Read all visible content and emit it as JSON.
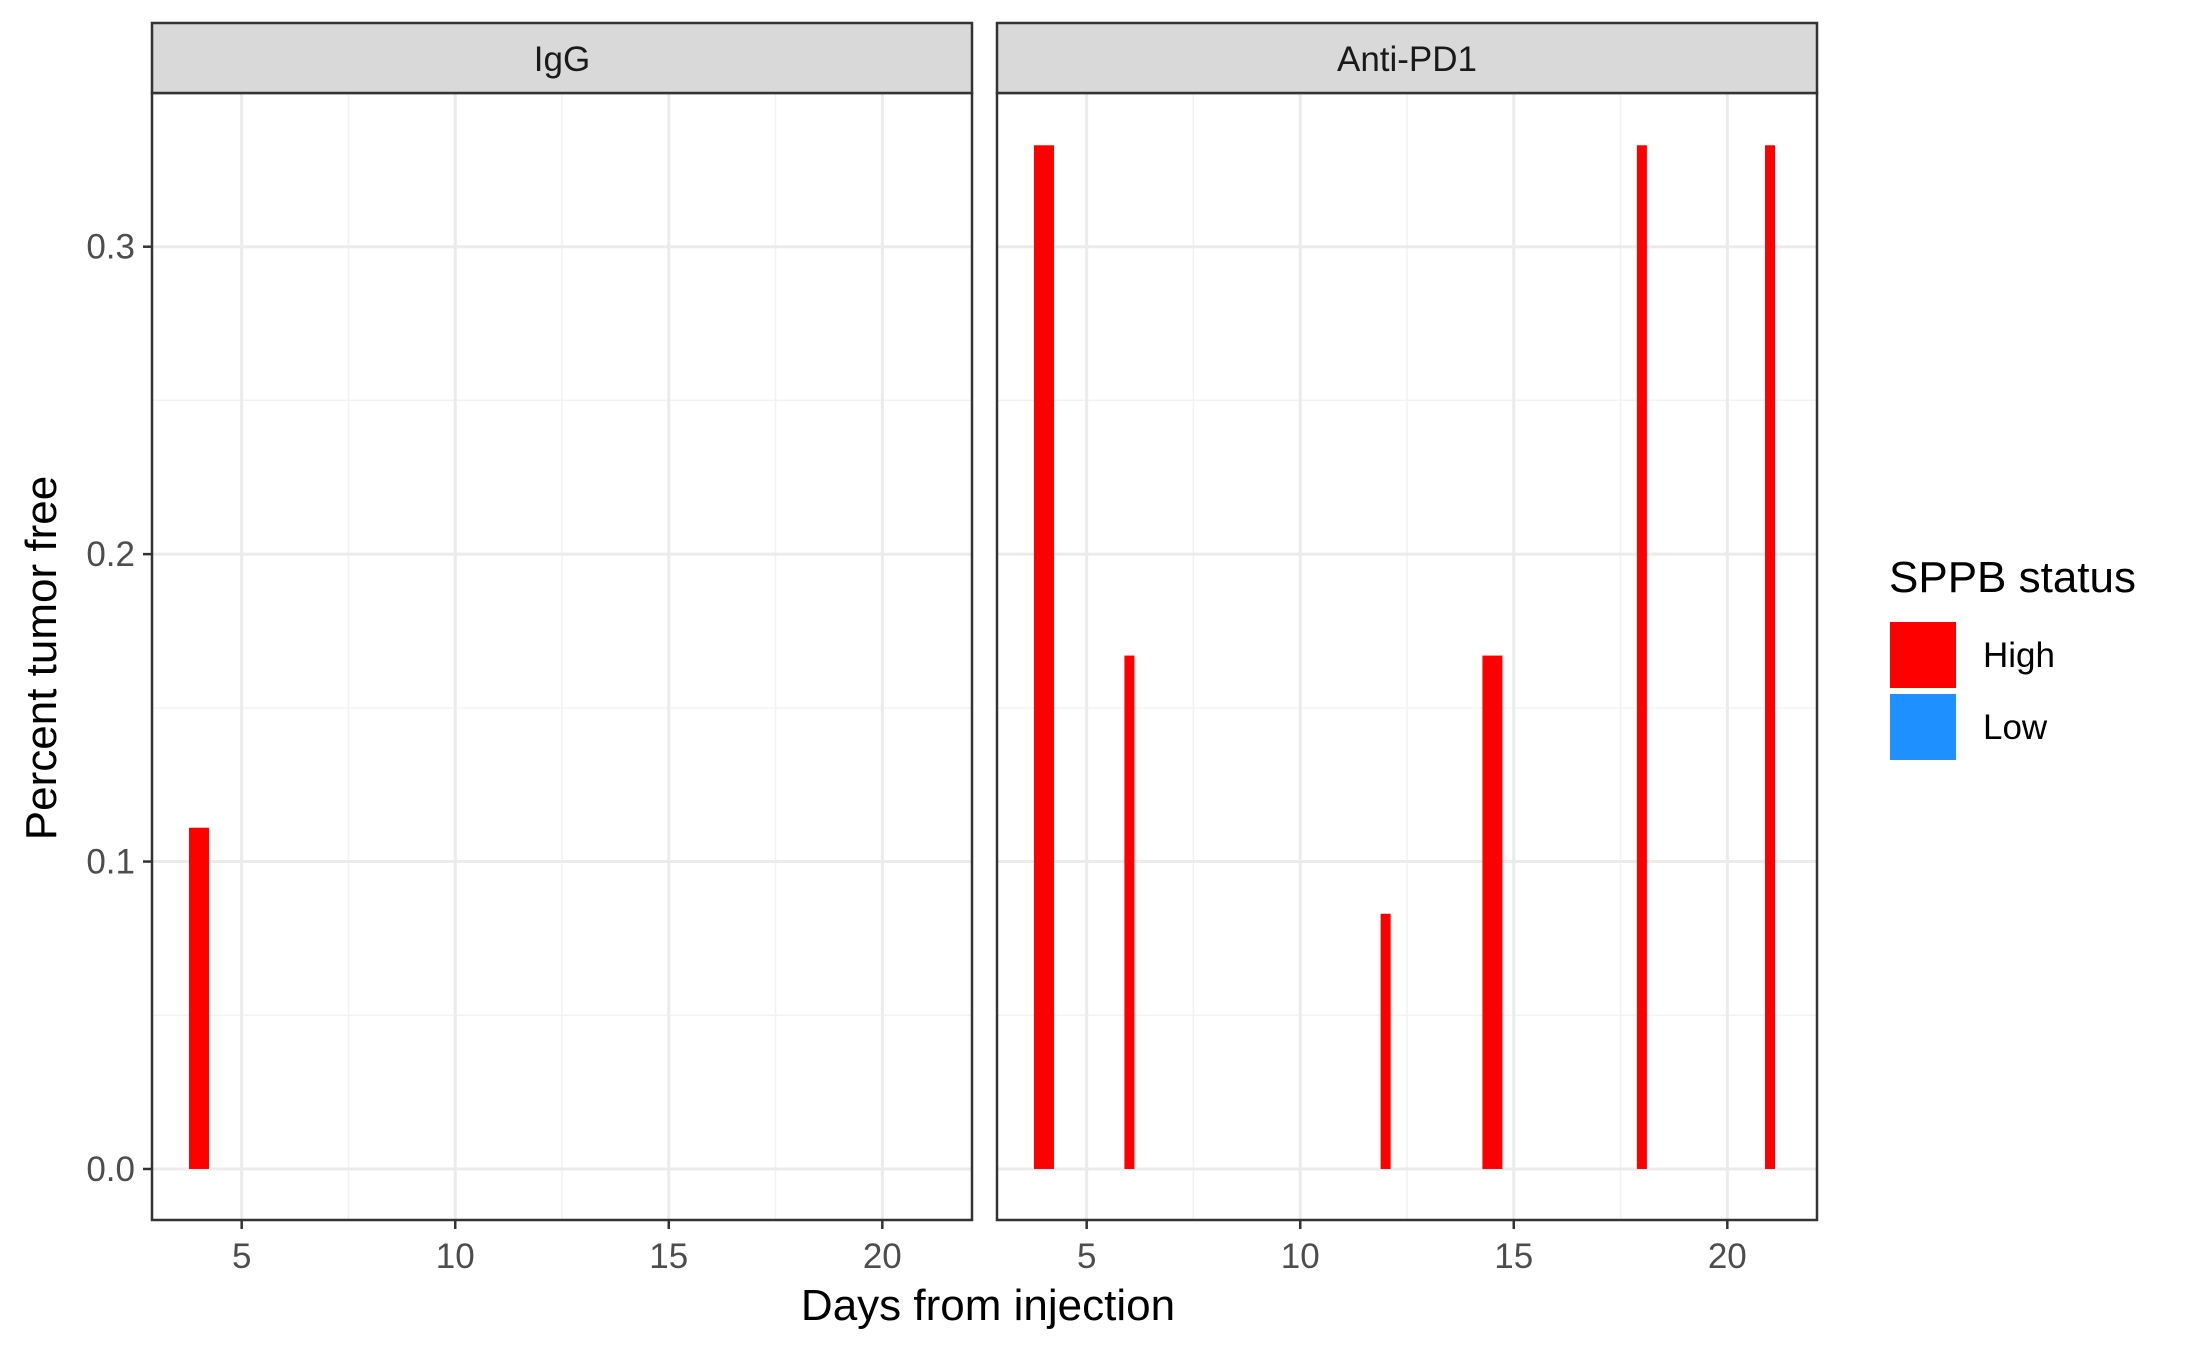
{
  "chart_data": {
    "type": "bar",
    "facets": [
      {
        "name": "IgG",
        "bars": [
          {
            "x": 4,
            "y": 0.111,
            "status": "High"
          }
        ]
      },
      {
        "name": "Anti-PD1",
        "bars": [
          {
            "x": 4,
            "y": 0.333,
            "status": "High"
          },
          {
            "x": 6,
            "y": 0.167,
            "status": "High"
          },
          {
            "x": 12,
            "y": 0.083,
            "status": "High"
          },
          {
            "x": 14.5,
            "y": 0.167,
            "status": "High"
          },
          {
            "x": 18,
            "y": 0.333,
            "status": "High"
          },
          {
            "x": 21,
            "y": 0.333,
            "status": "High"
          }
        ]
      }
    ],
    "xlabel": "Days from injection",
    "ylabel": "Percent tumor free",
    "x_ticks": [
      5,
      10,
      15,
      20
    ],
    "y_ticks": [
      0.0,
      0.1,
      0.2,
      0.3
    ],
    "y_tick_labels": [
      "0.0",
      "0.1",
      "0.2",
      "0.3"
    ],
    "xlim": [
      2.9,
      22.1
    ],
    "ylim": [
      -0.0166,
      0.35
    ],
    "grid": true,
    "legend": {
      "title": "SPPB status",
      "position": "right",
      "entries": [
        {
          "label": "High",
          "color": "#FF0000"
        },
        {
          "label": "Low",
          "color": "#1E90FF"
        }
      ]
    }
  }
}
